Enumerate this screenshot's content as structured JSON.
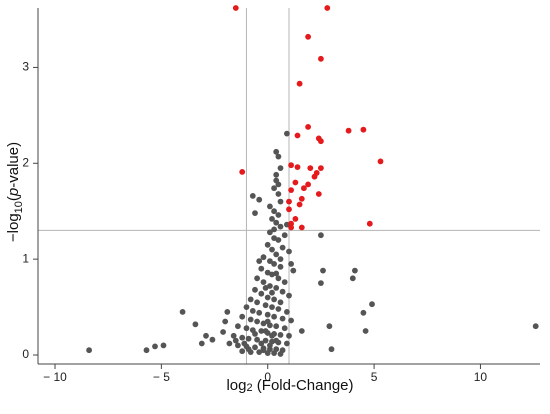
{
  "chart_data": {
    "type": "scatter",
    "title": "",
    "xlabel": {
      "prefix": "log",
      "sub": "2",
      "suffix": " (Fold-Change)"
    },
    "ylabel": {
      "prefix": "−log",
      "sub": "10",
      "open": "(",
      "italic": "p",
      "close": "-value)"
    },
    "xlim": [
      -10.8,
      12.8
    ],
    "ylim": [
      0,
      3.62
    ],
    "x_ticks": [
      -10,
      -5,
      0,
      5,
      10
    ],
    "y_ticks": [
      0,
      1,
      2,
      3
    ],
    "vertical_thresholds": [
      -1,
      1
    ],
    "horizontal_threshold": 1.3,
    "colors": {
      "significant": "#e41a1c",
      "not_significant": "#555555",
      "threshold": "#b5b5b5"
    },
    "significant_points": [
      [
        -1.5,
        3.62
      ],
      [
        2.8,
        3.62
      ],
      [
        1.9,
        3.32
      ],
      [
        2.5,
        3.09
      ],
      [
        1.5,
        2.83
      ],
      [
        1.9,
        2.38
      ],
      [
        3.8,
        2.34
      ],
      [
        4.5,
        2.35
      ],
      [
        1.4,
        2.29
      ],
      [
        2.4,
        2.26
      ],
      [
        2.5,
        2.23
      ],
      [
        5.3,
        2.02
      ],
      [
        1.1,
        1.98
      ],
      [
        1.4,
        1.96
      ],
      [
        2.0,
        1.95
      ],
      [
        2.5,
        1.95
      ],
      [
        2.3,
        1.9
      ],
      [
        2.2,
        1.86
      ],
      [
        -1.2,
        1.91
      ],
      [
        1.3,
        1.8
      ],
      [
        1.9,
        1.78
      ],
      [
        1.7,
        1.74
      ],
      [
        1.1,
        1.72
      ],
      [
        2.4,
        1.68
      ],
      [
        1.6,
        1.63
      ],
      [
        1.5,
        1.57
      ],
      [
        1.0,
        1.6
      ],
      [
        1.3,
        1.42
      ],
      [
        1.1,
        1.37
      ],
      [
        1.1,
        1.33
      ],
      [
        1.6,
        1.33
      ],
      [
        4.8,
        1.37
      ],
      [
        1.0,
        1.52
      ]
    ],
    "non_significant_points": [
      [
        0.9,
        2.31
      ],
      [
        0.4,
        2.12
      ],
      [
        0.5,
        2.07
      ],
      [
        0.6,
        1.95
      ],
      [
        0.4,
        1.88
      ],
      [
        0.4,
        1.82
      ],
      [
        0.5,
        1.78
      ],
      [
        0.3,
        1.74
      ],
      [
        0.5,
        1.68
      ],
      [
        0.6,
        1.6
      ],
      [
        0.1,
        1.55
      ],
      [
        0.3,
        1.5
      ],
      [
        0.5,
        1.46
      ],
      [
        0.2,
        1.42
      ],
      [
        0.4,
        1.38
      ],
      [
        0.6,
        1.34
      ],
      [
        0.9,
        1.36
      ],
      [
        0.3,
        1.31
      ],
      [
        -0.7,
        1.66
      ],
      [
        -0.4,
        1.62
      ],
      [
        -0.6,
        1.48
      ],
      [
        0.1,
        1.28
      ],
      [
        0.3,
        1.22
      ],
      [
        0.5,
        1.2
      ],
      [
        0.8,
        1.25
      ],
      [
        0.0,
        1.15
      ],
      [
        0.2,
        1.1
      ],
      [
        0.4,
        1.05
      ],
      [
        0.7,
        1.12
      ],
      [
        1.0,
        1.08
      ],
      [
        -0.2,
        1.02
      ],
      [
        0.1,
        0.98
      ],
      [
        0.3,
        0.95
      ],
      [
        0.6,
        0.92
      ],
      [
        1.1,
        0.95
      ],
      [
        1.2,
        0.88
      ],
      [
        -0.3,
        0.9
      ],
      [
        0.0,
        0.86
      ],
      [
        0.2,
        0.84
      ],
      [
        0.5,
        0.8
      ],
      [
        0.8,
        0.76
      ],
      [
        -0.5,
        0.8
      ],
      [
        -0.2,
        0.76
      ],
      [
        0.1,
        0.72
      ],
      [
        0.4,
        0.7
      ],
      [
        0.7,
        0.66
      ],
      [
        1.0,
        0.62
      ],
      [
        -0.6,
        0.68
      ],
      [
        -0.3,
        0.64
      ],
      [
        0.0,
        0.6
      ],
      [
        0.3,
        0.58
      ],
      [
        0.6,
        0.55
      ],
      [
        -0.8,
        0.58
      ],
      [
        -0.5,
        0.55
      ],
      [
        -0.1,
        0.52
      ],
      [
        0.2,
        0.5
      ],
      [
        0.5,
        0.48
      ],
      [
        0.9,
        0.45
      ],
      [
        -1.0,
        0.5
      ],
      [
        -0.7,
        0.46
      ],
      [
        -0.4,
        0.44
      ],
      [
        0.0,
        0.42
      ],
      [
        0.3,
        0.4
      ],
      [
        0.7,
        0.38
      ],
      [
        1.1,
        0.36
      ],
      [
        -1.2,
        0.4
      ],
      [
        -0.8,
        0.37
      ],
      [
        -0.5,
        0.35
      ],
      [
        -0.2,
        0.33
      ],
      [
        0.1,
        0.31
      ],
      [
        0.4,
        0.3
      ],
      [
        0.8,
        0.28
      ],
      [
        -1.4,
        0.3
      ],
      [
        -1.0,
        0.28
      ],
      [
        -0.7,
        0.26
      ],
      [
        -0.3,
        0.25
      ],
      [
        0.0,
        0.23
      ],
      [
        0.3,
        0.22
      ],
      [
        0.6,
        0.21
      ],
      [
        1.0,
        0.2
      ],
      [
        -1.6,
        0.2
      ],
      [
        -1.2,
        0.18
      ],
      [
        -0.9,
        0.17
      ],
      [
        -0.5,
        0.16
      ],
      [
        -0.1,
        0.15
      ],
      [
        0.2,
        0.14
      ],
      [
        0.5,
        0.13
      ],
      [
        0.9,
        0.12
      ],
      [
        -1.8,
        0.12
      ],
      [
        -1.4,
        0.1
      ],
      [
        -1.0,
        0.09
      ],
      [
        -0.6,
        0.08
      ],
      [
        -0.2,
        0.07
      ],
      [
        0.1,
        0.06
      ],
      [
        0.4,
        0.06
      ],
      [
        0.7,
        0.05
      ],
      [
        -1.2,
        0.04
      ],
      [
        -0.8,
        0.03
      ],
      [
        -0.4,
        0.03
      ],
      [
        0.0,
        0.02
      ],
      [
        0.3,
        0.02
      ],
      [
        0.6,
        0.01
      ],
      [
        -0.1,
        0.25
      ],
      [
        0.2,
        0.2
      ],
      [
        -0.3,
        0.12
      ],
      [
        0.1,
        0.1
      ],
      [
        -0.2,
        0.05
      ],
      [
        0.4,
        0.15
      ],
      [
        0.0,
        0.35
      ],
      [
        -0.6,
        0.22
      ],
      [
        0.2,
        0.65
      ],
      [
        -0.1,
        0.7
      ],
      [
        0.4,
        0.85
      ],
      [
        -0.4,
        0.98
      ],
      [
        0.6,
        1.0
      ],
      [
        -0.9,
        0.06
      ],
      [
        -1.1,
        0.12
      ],
      [
        -1.5,
        0.15
      ],
      [
        -1.9,
        0.45
      ],
      [
        -2.0,
        0.35
      ],
      [
        -2.1,
        0.24
      ],
      [
        -2.6,
        0.16
      ],
      [
        -2.9,
        0.2
      ],
      [
        -3.1,
        0.12
      ],
      [
        -3.4,
        0.32
      ],
      [
        -4.0,
        0.45
      ],
      [
        -4.9,
        0.1
      ],
      [
        -5.3,
        0.09
      ],
      [
        -5.7,
        0.05
      ],
      [
        -8.4,
        0.05
      ],
      [
        2.5,
        0.75
      ],
      [
        2.6,
        0.88
      ],
      [
        2.5,
        1.25
      ],
      [
        2.9,
        0.3
      ],
      [
        4.0,
        0.8
      ],
      [
        4.1,
        0.88
      ],
      [
        4.6,
        0.25
      ],
      [
        4.5,
        0.44
      ],
      [
        4.9,
        0.53
      ],
      [
        12.6,
        0.3
      ],
      [
        3.0,
        0.06
      ],
      [
        1.6,
        0.25
      ]
    ]
  }
}
